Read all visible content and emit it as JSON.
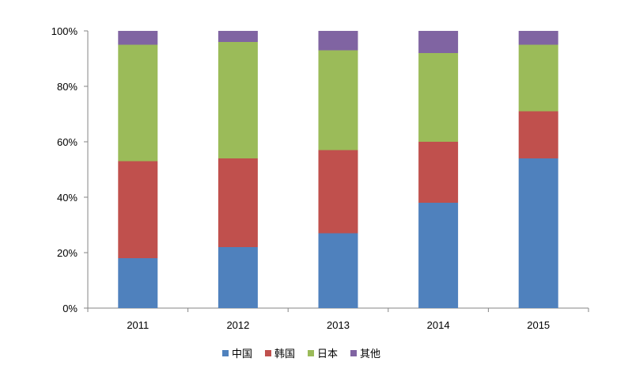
{
  "chart_data": {
    "type": "bar",
    "stacked": "percent",
    "categories": [
      "2011",
      "2012",
      "2013",
      "2014",
      "2015"
    ],
    "series": [
      {
        "name": "中国",
        "color": "#4F81BD",
        "values": [
          18,
          22,
          27,
          38,
          54
        ]
      },
      {
        "name": "韩国",
        "color": "#C0504D",
        "values": [
          35,
          32,
          30,
          22,
          17
        ]
      },
      {
        "name": "日本",
        "color": "#9BBB59",
        "values": [
          42,
          42,
          36,
          32,
          24
        ]
      },
      {
        "name": "其他",
        "color": "#8064A2",
        "values": [
          5,
          4,
          7,
          8,
          5
        ]
      }
    ],
    "yticks": [
      "0%",
      "20%",
      "40%",
      "60%",
      "80%",
      "100%"
    ],
    "ylim": [
      0,
      100
    ],
    "grid": false,
    "legend": "bottom"
  }
}
